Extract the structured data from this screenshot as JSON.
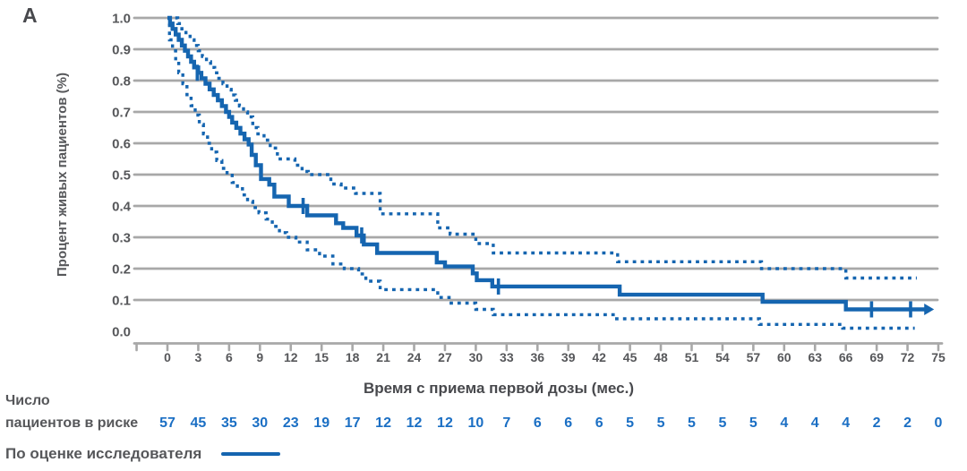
{
  "panel_label": "A",
  "colors": {
    "accent_blue": "#1565b0",
    "risk_number_blue": "#1b6fc4",
    "grid_gray": "#a8a8a8",
    "title_gray": "#48494d",
    "tick_gray": "#56575a",
    "background": "#ffffff"
  },
  "y_axis": {
    "title": "Процент живых пациентов (%)",
    "ticks": [
      {
        "label": "1.0",
        "value": 1.0
      },
      {
        "label": "0.9",
        "value": 0.9
      },
      {
        "label": "0.8",
        "value": 0.8
      },
      {
        "label": "0.7",
        "value": 0.7
      },
      {
        "label": "0.6",
        "value": 0.6
      },
      {
        "label": "0.5",
        "value": 0.5
      },
      {
        "label": "0.4",
        "value": 0.4
      },
      {
        "label": "0.3",
        "value": 0.3
      },
      {
        "label": "0.2",
        "value": 0.2
      },
      {
        "label": "0.1",
        "value": 0.1
      },
      {
        "label": "0.0",
        "value": 0.0
      }
    ]
  },
  "x_axis": {
    "title": "Время с приема первой дозы (мес.)",
    "tick_values": [
      0,
      3,
      6,
      9,
      12,
      15,
      18,
      21,
      24,
      27,
      30,
      33,
      36,
      39,
      42,
      45,
      48,
      51,
      54,
      57,
      60,
      63,
      66,
      69,
      72,
      75
    ],
    "unlabeled_lead_tick": -3
  },
  "risk_table": {
    "label_line1": "Число",
    "label_line2": "пациентов в риске"
  },
  "legend": {
    "label": "По оценке исследователя"
  },
  "chart_data": {
    "type": "line",
    "subtype": "kaplan-meier-step",
    "title": "",
    "xlabel": "Время с приема первой дозы (мес.)",
    "ylabel": "Процент живых пациентов (%)",
    "xlim": [
      -3,
      75.5
    ],
    "ylim": [
      0,
      1.0
    ],
    "grid": "horizontal",
    "legend_position": "bottom-left",
    "series": [
      {
        "name": "По оценке исследователя",
        "style": "solid",
        "end_x": 73.8,
        "arrow_end": true,
        "points": [
          [
            0,
            1.0
          ],
          [
            0.25,
            0.982
          ],
          [
            0.5,
            0.965
          ],
          [
            0.8,
            0.947
          ],
          [
            1.1,
            0.93
          ],
          [
            1.4,
            0.912
          ],
          [
            1.7,
            0.895
          ],
          [
            2.0,
            0.877
          ],
          [
            2.3,
            0.86
          ],
          [
            2.6,
            0.842
          ],
          [
            3.0,
            0.825
          ],
          [
            3.3,
            0.807
          ],
          [
            3.7,
            0.79
          ],
          [
            4.1,
            0.772
          ],
          [
            4.5,
            0.754
          ],
          [
            4.9,
            0.737
          ],
          [
            5.3,
            0.719
          ],
          [
            5.7,
            0.7
          ],
          [
            6.0,
            0.684
          ],
          [
            6.3,
            0.666
          ],
          [
            6.7,
            0.649
          ],
          [
            7.1,
            0.631
          ],
          [
            7.5,
            0.613
          ],
          [
            7.9,
            0.596
          ],
          [
            8.2,
            0.563
          ],
          [
            8.6,
            0.53
          ],
          [
            9.1,
            0.486
          ],
          [
            9.9,
            0.468
          ],
          [
            10.4,
            0.43
          ],
          [
            11.8,
            0.4
          ],
          [
            13.6,
            0.37
          ],
          [
            16.4,
            0.345
          ],
          [
            17.1,
            0.33
          ],
          [
            18.4,
            0.306
          ],
          [
            19.1,
            0.277
          ],
          [
            20.4,
            0.25
          ],
          [
            26.2,
            0.22
          ],
          [
            27.0,
            0.207
          ],
          [
            29.7,
            0.185
          ],
          [
            30.1,
            0.163
          ],
          [
            31.6,
            0.143
          ],
          [
            44.0,
            0.117
          ],
          [
            57.9,
            0.094
          ],
          [
            66.0,
            0.07
          ]
        ]
      },
      {
        "name": "ci-upper",
        "style": "dashed",
        "end_x": 72.9,
        "arrow_end": false,
        "points": [
          [
            0,
            1.0
          ],
          [
            1.0,
            0.982
          ],
          [
            1.4,
            0.965
          ],
          [
            1.8,
            0.947
          ],
          [
            2.2,
            0.93
          ],
          [
            2.6,
            0.912
          ],
          [
            3.0,
            0.895
          ],
          [
            3.4,
            0.877
          ],
          [
            3.8,
            0.86
          ],
          [
            4.2,
            0.842
          ],
          [
            4.6,
            0.825
          ],
          [
            5.0,
            0.807
          ],
          [
            5.4,
            0.79
          ],
          [
            5.8,
            0.772
          ],
          [
            6.2,
            0.754
          ],
          [
            6.6,
            0.737
          ],
          [
            7.0,
            0.719
          ],
          [
            7.4,
            0.7
          ],
          [
            7.8,
            0.684
          ],
          [
            8.3,
            0.65
          ],
          [
            8.8,
            0.63
          ],
          [
            9.4,
            0.61
          ],
          [
            10.0,
            0.585
          ],
          [
            10.7,
            0.55
          ],
          [
            12.4,
            0.53
          ],
          [
            13.1,
            0.51
          ],
          [
            13.7,
            0.5
          ],
          [
            15.9,
            0.47
          ],
          [
            16.9,
            0.457
          ],
          [
            18.3,
            0.44
          ],
          [
            20.7,
            0.375
          ],
          [
            26.3,
            0.33
          ],
          [
            27.5,
            0.31
          ],
          [
            30.0,
            0.28
          ],
          [
            31.7,
            0.25
          ],
          [
            43.8,
            0.222
          ],
          [
            57.8,
            0.2
          ],
          [
            66.0,
            0.17
          ]
        ]
      },
      {
        "name": "ci-lower",
        "style": "dashed",
        "end_x": 72.7,
        "arrow_end": false,
        "points": [
          [
            0,
            1.0
          ],
          [
            0.2,
            0.93
          ],
          [
            0.5,
            0.895
          ],
          [
            0.8,
            0.86
          ],
          [
            1.1,
            0.825
          ],
          [
            1.5,
            0.79
          ],
          [
            1.9,
            0.755
          ],
          [
            2.3,
            0.72
          ],
          [
            2.7,
            0.69
          ],
          [
            3.1,
            0.66
          ],
          [
            3.5,
            0.63
          ],
          [
            3.9,
            0.6
          ],
          [
            4.3,
            0.572
          ],
          [
            4.8,
            0.545
          ],
          [
            5.3,
            0.52
          ],
          [
            5.8,
            0.498
          ],
          [
            6.3,
            0.475
          ],
          [
            6.8,
            0.455
          ],
          [
            7.3,
            0.435
          ],
          [
            7.8,
            0.415
          ],
          [
            8.3,
            0.395
          ],
          [
            8.9,
            0.378
          ],
          [
            9.6,
            0.358
          ],
          [
            10.2,
            0.335
          ],
          [
            10.9,
            0.315
          ],
          [
            11.6,
            0.3
          ],
          [
            12.5,
            0.285
          ],
          [
            13.6,
            0.26
          ],
          [
            14.8,
            0.24
          ],
          [
            16.1,
            0.215
          ],
          [
            17.2,
            0.2
          ],
          [
            18.6,
            0.183
          ],
          [
            19.3,
            0.16
          ],
          [
            20.7,
            0.133
          ],
          [
            26.3,
            0.108
          ],
          [
            27.4,
            0.09
          ],
          [
            30.0,
            0.07
          ],
          [
            31.7,
            0.053
          ],
          [
            43.7,
            0.04
          ],
          [
            57.6,
            0.022
          ],
          [
            65.7,
            0.01
          ]
        ]
      }
    ],
    "censor_marks": [
      [
        2.9,
        0.825
      ],
      [
        13.2,
        0.4
      ],
      [
        18.9,
        0.306
      ],
      [
        32.2,
        0.143
      ],
      [
        68.5,
        0.07
      ],
      [
        72.3,
        0.07
      ]
    ],
    "at_risk": {
      "months": [
        0,
        3,
        6,
        9,
        12,
        15,
        18,
        21,
        24,
        27,
        30,
        33,
        36,
        39,
        42,
        45,
        48,
        51,
        54,
        57,
        60,
        63,
        66,
        69,
        72,
        75
      ],
      "counts": [
        57,
        45,
        35,
        30,
        23,
        19,
        17,
        12,
        12,
        12,
        10,
        7,
        6,
        6,
        6,
        5,
        5,
        5,
        5,
        5,
        4,
        4,
        4,
        2,
        2,
        0
      ]
    }
  }
}
